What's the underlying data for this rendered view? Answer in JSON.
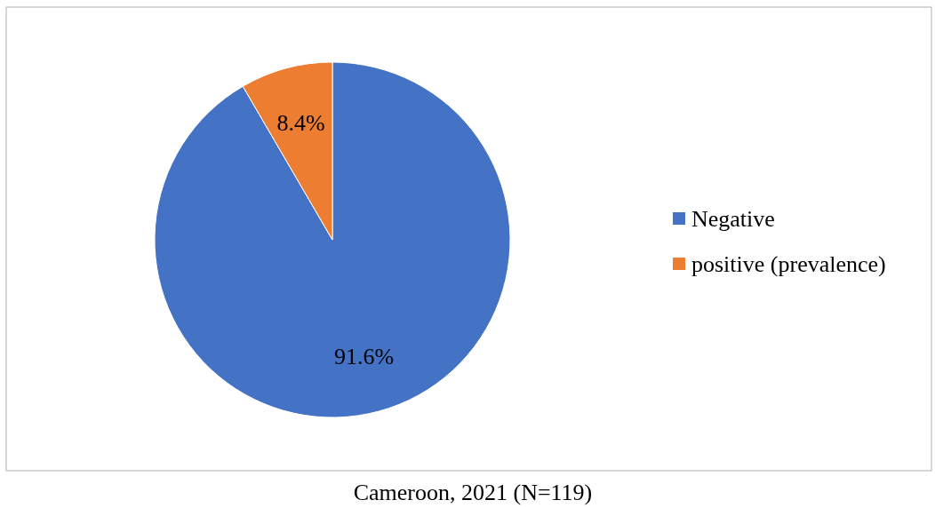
{
  "chart_data": {
    "type": "pie",
    "categories": [
      "Negative",
      "positive (prevalence)"
    ],
    "values": [
      91.6,
      8.4
    ],
    "colors": [
      "#4472c4",
      "#ed7d31"
    ],
    "value_labels": [
      "91.6%",
      "8.4%"
    ],
    "legend": "right",
    "annotations": [
      "Cameroon, 2021 (N=119)"
    ]
  }
}
